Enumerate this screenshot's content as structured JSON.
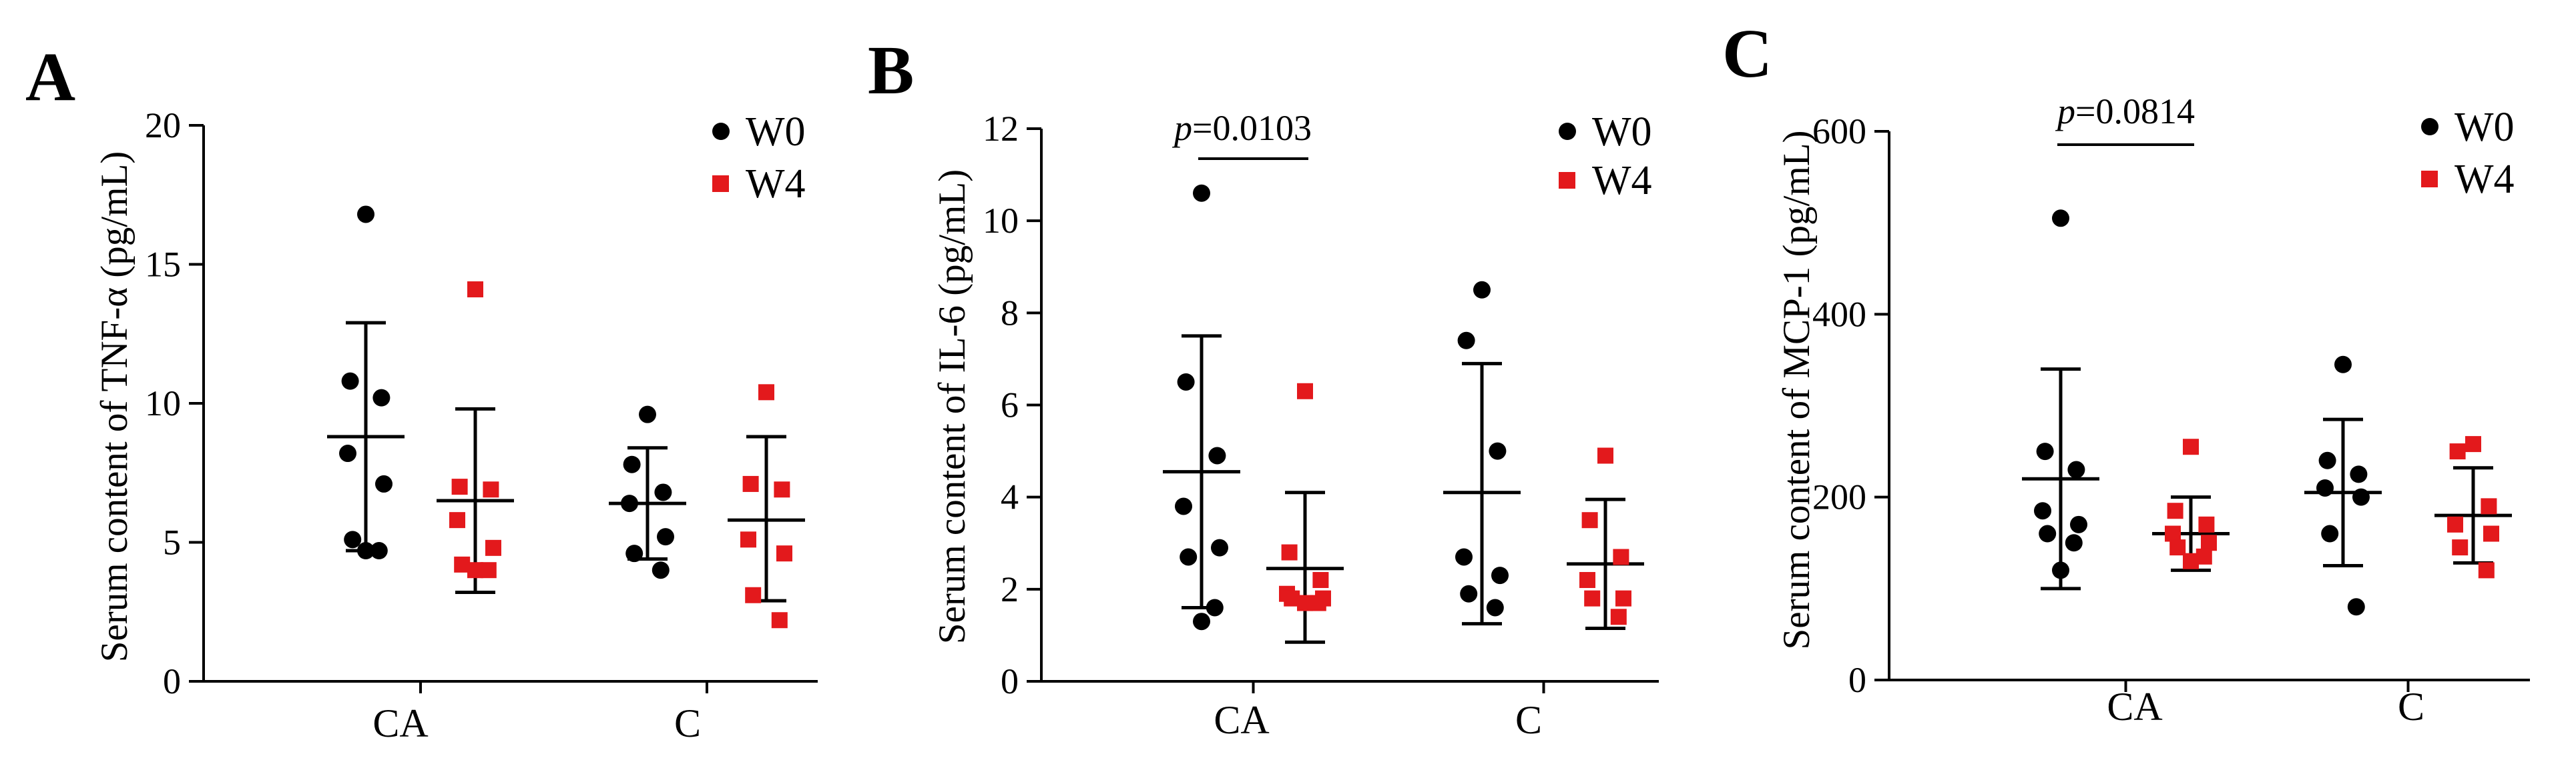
{
  "figure": {
    "categories": [
      "CA",
      "C"
    ],
    "legend": [
      {
        "label": "W0",
        "shape": "circle",
        "color": "#000000"
      },
      {
        "label": "W4",
        "shape": "square",
        "color": "#e3191c"
      }
    ]
  },
  "chart_data": [
    {
      "panel": "A",
      "type": "scatter",
      "ylabel": "Serum content of TNF-α (pg/mL)",
      "ylim": [
        0,
        20
      ],
      "yticks": [
        "0",
        "5",
        "10",
        "15",
        "20"
      ],
      "categories": [
        "CA",
        "C"
      ],
      "annotation": null,
      "groups": [
        {
          "category": "CA",
          "series": "W0",
          "mean": 8.8,
          "sd_low": 4.7,
          "sd_high": 12.9,
          "points": [
            16.8,
            10.8,
            10.2,
            8.2,
            7.1,
            5.1,
            4.7,
            4.7
          ]
        },
        {
          "category": "CA",
          "series": "W4",
          "mean": 6.5,
          "sd_low": 3.2,
          "sd_high": 9.8,
          "points": [
            14.1,
            7.0,
            6.9,
            5.8,
            4.8,
            4.2,
            4.0,
            4.0
          ]
        },
        {
          "category": "C",
          "series": "W0",
          "mean": 6.4,
          "sd_low": 4.4,
          "sd_high": 8.4,
          "points": [
            9.6,
            7.8,
            6.8,
            6.4,
            5.2,
            4.6,
            4.0
          ]
        },
        {
          "category": "C",
          "series": "W4",
          "mean": 5.8,
          "sd_low": 2.9,
          "sd_high": 8.8,
          "points": [
            10.4,
            7.1,
            6.9,
            5.1,
            4.6,
            3.1,
            2.2
          ]
        }
      ]
    },
    {
      "panel": "B",
      "type": "scatter",
      "ylabel": "Serum content of IL-6 (pg/mL)",
      "ylim": [
        0,
        12
      ],
      "yticks": [
        "0",
        "2",
        "4",
        "6",
        "8",
        "10",
        "12"
      ],
      "categories": [
        "CA",
        "C"
      ],
      "annotation": {
        "label": "p",
        "value": "=0.0103",
        "from": "CA-W0",
        "to": "CA-W4"
      },
      "groups": [
        {
          "category": "CA",
          "series": "W0",
          "mean": 4.55,
          "sd_low": 1.6,
          "sd_high": 7.5,
          "points": [
            10.6,
            6.5,
            4.9,
            3.8,
            2.9,
            2.7,
            1.6,
            1.3
          ]
        },
        {
          "category": "CA",
          "series": "W4",
          "mean": 2.45,
          "sd_low": 0.85,
          "sd_high": 4.1,
          "points": [
            6.3,
            2.8,
            2.2,
            1.9,
            1.8,
            1.8,
            1.7,
            1.7
          ]
        },
        {
          "category": "C",
          "series": "W0",
          "mean": 4.1,
          "sd_low": 1.25,
          "sd_high": 6.9,
          "points": [
            8.5,
            7.4,
            5.0,
            2.7,
            2.3,
            1.9,
            1.6
          ]
        },
        {
          "category": "C",
          "series": "W4",
          "mean": 2.55,
          "sd_low": 1.15,
          "sd_high": 3.95,
          "points": [
            4.9,
            3.5,
            2.7,
            2.2,
            1.8,
            1.8,
            1.4
          ]
        }
      ]
    },
    {
      "panel": "C",
      "type": "scatter",
      "ylabel": "Serum content of MCP-1 (pg/mL)",
      "ylim": [
        0,
        600
      ],
      "yticks": [
        "0",
        "200",
        "400",
        "600"
      ],
      "categories": [
        "CA",
        "C"
      ],
      "annotation": {
        "label": "p",
        "value": "=0.0814",
        "from": "CA-W0",
        "to": "CA-W4"
      },
      "groups": [
        {
          "category": "CA",
          "series": "W0",
          "mean": 220,
          "sd_low": 100,
          "sd_high": 340,
          "points": [
            505,
            250,
            230,
            185,
            170,
            160,
            150,
            120
          ]
        },
        {
          "category": "CA",
          "series": "W4",
          "mean": 160,
          "sd_low": 120,
          "sd_high": 200,
          "points": [
            255,
            185,
            170,
            160,
            150,
            145,
            135,
            130
          ]
        },
        {
          "category": "C",
          "series": "W0",
          "mean": 205,
          "sd_low": 125,
          "sd_high": 285,
          "points": [
            345,
            240,
            225,
            210,
            200,
            160,
            80
          ]
        },
        {
          "category": "C",
          "series": "W4",
          "mean": 180,
          "sd_low": 128,
          "sd_high": 232,
          "points": [
            258,
            250,
            190,
            170,
            160,
            145,
            120
          ]
        }
      ]
    }
  ]
}
